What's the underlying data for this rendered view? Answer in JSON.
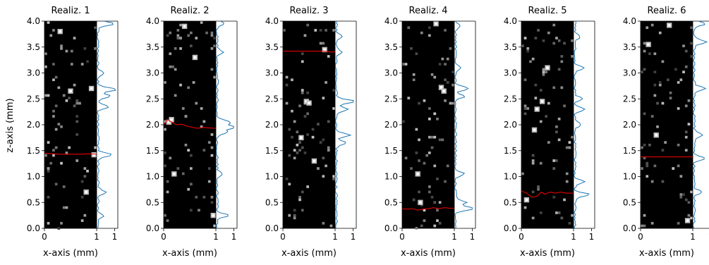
{
  "chart_data": {
    "type": "heatmap",
    "shared_ylabel": "z-axis (mm)",
    "colors": {
      "image_bg": "#000000",
      "cells": "grayscale",
      "path": "#ff0000",
      "profile": "#1f77b4"
    },
    "panels": [
      {
        "title": "Realiz. 1",
        "xlabel": "x-axis (mm)",
        "xlim": [
          0,
          1
        ],
        "ylim": [
          0,
          4
        ],
        "xticks": [
          "0",
          "1"
        ],
        "yticks": [
          "0.0",
          "0.5",
          "1.0",
          "1.5",
          "2.0",
          "2.5",
          "3.0",
          "3.5",
          "4.0"
        ],
        "profile_xtick": "1",
        "seed": 11,
        "bright_spots": [
          [
            0.9,
            2.7
          ],
          [
            0.5,
            2.65
          ],
          [
            0.8,
            0.7
          ],
          [
            0.3,
            3.8
          ],
          [
            0.95,
            1.42
          ]
        ],
        "path": [
          [
            0,
            1.45
          ],
          [
            0.15,
            1.44
          ],
          [
            0.3,
            1.43
          ],
          [
            0.5,
            1.43
          ],
          [
            0.7,
            1.43
          ],
          [
            0.85,
            1.44
          ],
          [
            1.0,
            1.43
          ]
        ],
        "profile_peaks": [
          [
            3.95,
            0.9
          ],
          [
            2.68,
            1.0
          ],
          [
            2.55,
            0.7
          ],
          [
            2.35,
            0.6
          ],
          [
            1.42,
            0.8
          ],
          [
            0.7,
            0.45
          ],
          [
            3.0,
            0.35
          ],
          [
            0.25,
            0.3
          ]
        ]
      },
      {
        "title": "Realiz. 2",
        "xlabel": "x-axis (mm)",
        "xlim": [
          0,
          1
        ],
        "ylim": [
          0,
          4
        ],
        "xticks": [
          "0",
          "1"
        ],
        "yticks": [
          "0.0",
          "0.5",
          "1.0",
          "1.5",
          "2.0",
          "2.5",
          "3.0",
          "3.5",
          "4.0"
        ],
        "profile_xtick": "1",
        "seed": 23,
        "bright_spots": [
          [
            0.1,
            2.05
          ],
          [
            0.15,
            2.1
          ],
          [
            0.2,
            1.05
          ],
          [
            0.95,
            0.25
          ],
          [
            0.4,
            3.9
          ],
          [
            0.6,
            3.3
          ]
        ],
        "path": [
          [
            0,
            2.0
          ],
          [
            0.08,
            2.1
          ],
          [
            0.15,
            2.05
          ],
          [
            0.25,
            2.0
          ],
          [
            0.35,
            2.01
          ],
          [
            0.45,
            1.97
          ],
          [
            0.55,
            1.95
          ],
          [
            0.65,
            1.93
          ],
          [
            0.75,
            1.95
          ],
          [
            0.85,
            1.94
          ],
          [
            1.0,
            1.93
          ]
        ],
        "profile_peaks": [
          [
            3.95,
            0.35
          ],
          [
            1.95,
            1.0
          ],
          [
            2.05,
            0.75
          ],
          [
            1.85,
            0.55
          ],
          [
            0.25,
            0.6
          ],
          [
            1.05,
            0.3
          ],
          [
            3.4,
            0.3
          ]
        ]
      },
      {
        "title": "Realiz. 3",
        "xlabel": "x-axis (mm)",
        "xlim": [
          0,
          1
        ],
        "ylim": [
          0,
          4
        ],
        "xticks": [
          "0",
          "1"
        ],
        "yticks": [
          "0.0",
          "0.5",
          "1.0",
          "1.5",
          "2.0",
          "2.5",
          "3.0",
          "3.5",
          "4.0"
        ],
        "profile_xtick": "1",
        "seed": 37,
        "bright_spots": [
          [
            0.45,
            2.45
          ],
          [
            0.5,
            2.42
          ],
          [
            0.35,
            1.75
          ],
          [
            0.6,
            1.3
          ],
          [
            0.8,
            3.45
          ]
        ],
        "path": [
          [
            0,
            3.42
          ],
          [
            0.2,
            3.42
          ],
          [
            0.4,
            3.42
          ],
          [
            0.6,
            3.42
          ],
          [
            0.8,
            3.42
          ],
          [
            0.95,
            3.4
          ],
          [
            1.0,
            3.42
          ]
        ],
        "profile_peaks": [
          [
            2.45,
            1.0
          ],
          [
            2.3,
            0.6
          ],
          [
            1.8,
            0.75
          ],
          [
            1.65,
            0.55
          ],
          [
            3.4,
            0.35
          ],
          [
            3.7,
            0.3
          ]
        ]
      },
      {
        "title": "Realiz. 4",
        "xlabel": "x-axis (mm)",
        "xlim": [
          0,
          1
        ],
        "ylim": [
          0,
          4
        ],
        "xticks": [
          "0",
          "1"
        ],
        "yticks": [
          "0.0",
          "0.5",
          "1.0",
          "1.5",
          "2.0",
          "2.5",
          "3.0",
          "3.5",
          "4.0"
        ],
        "profile_xtick": "1",
        "seed": 41,
        "bright_spots": [
          [
            0.75,
            2.72
          ],
          [
            0.8,
            2.65
          ],
          [
            0.35,
            0.5
          ],
          [
            0.3,
            1.05
          ],
          [
            0.65,
            3.95
          ]
        ],
        "path": [
          [
            0,
            0.38
          ],
          [
            0.1,
            0.37
          ],
          [
            0.2,
            0.38
          ],
          [
            0.3,
            0.35
          ],
          [
            0.4,
            0.37
          ],
          [
            0.5,
            0.38
          ],
          [
            0.6,
            0.4
          ],
          [
            0.7,
            0.38
          ],
          [
            0.8,
            0.4
          ],
          [
            0.9,
            0.39
          ],
          [
            1.0,
            0.39
          ]
        ],
        "profile_peaks": [
          [
            2.7,
            0.7
          ],
          [
            2.55,
            0.5
          ],
          [
            0.38,
            1.0
          ],
          [
            0.5,
            0.6
          ],
          [
            1.05,
            0.5
          ],
          [
            3.1,
            0.3
          ],
          [
            3.9,
            0.3
          ]
        ]
      },
      {
        "title": "Realiz. 5",
        "xlabel": "x-axis (mm)",
        "xlim": [
          0,
          1
        ],
        "ylim": [
          0,
          4
        ],
        "xticks": [
          "0",
          "1"
        ],
        "yticks": [
          "0.0",
          "0.5",
          "1.0",
          "1.5",
          "2.0",
          "2.5",
          "3.0",
          "3.5",
          "4.0"
        ],
        "profile_xtick": "1",
        "seed": 53,
        "bright_spots": [
          [
            0.5,
            3.1
          ],
          [
            0.3,
            2.3
          ],
          [
            0.4,
            2.45
          ],
          [
            0.25,
            1.9
          ],
          [
            0.1,
            0.55
          ]
        ],
        "path": [
          [
            0,
            0.72
          ],
          [
            0.1,
            0.68
          ],
          [
            0.2,
            0.6
          ],
          [
            0.3,
            0.62
          ],
          [
            0.38,
            0.7
          ],
          [
            0.45,
            0.66
          ],
          [
            0.55,
            0.7
          ],
          [
            0.65,
            0.68
          ],
          [
            0.75,
            0.7
          ],
          [
            0.85,
            0.68
          ],
          [
            1.0,
            0.68
          ]
        ],
        "profile_peaks": [
          [
            3.1,
            0.55
          ],
          [
            2.3,
            0.6
          ],
          [
            2.5,
            0.4
          ],
          [
            0.65,
            0.8
          ],
          [
            0.9,
            0.55
          ],
          [
            3.7,
            0.3
          ],
          [
            2.0,
            0.35
          ]
        ]
      },
      {
        "title": "Realiz. 6",
        "xlabel": "x-axis (mm)",
        "xlim": [
          0,
          1
        ],
        "ylim": [
          0,
          4
        ],
        "xticks": [
          "0",
          "1"
        ],
        "yticks": [
          "0.0",
          "0.5",
          "1.0",
          "1.5",
          "2.0",
          "2.5",
          "3.0",
          "3.5",
          "4.0"
        ],
        "profile_xtick": "1",
        "seed": 67,
        "bright_spots": [
          [
            0.55,
            3.92
          ],
          [
            0.3,
            1.8
          ],
          [
            0.15,
            3.55
          ],
          [
            0.9,
            0.15
          ]
        ],
        "path": [
          [
            0,
            1.38
          ],
          [
            0.2,
            1.38
          ],
          [
            0.4,
            1.38
          ],
          [
            0.6,
            1.38
          ],
          [
            0.8,
            1.38
          ],
          [
            1.0,
            1.38
          ]
        ],
        "profile_peaks": [
          [
            3.95,
            0.6
          ],
          [
            3.6,
            0.7
          ],
          [
            2.7,
            0.6
          ],
          [
            1.8,
            0.5
          ],
          [
            1.35,
            0.55
          ],
          [
            0.7,
            0.45
          ]
        ]
      }
    ]
  }
}
